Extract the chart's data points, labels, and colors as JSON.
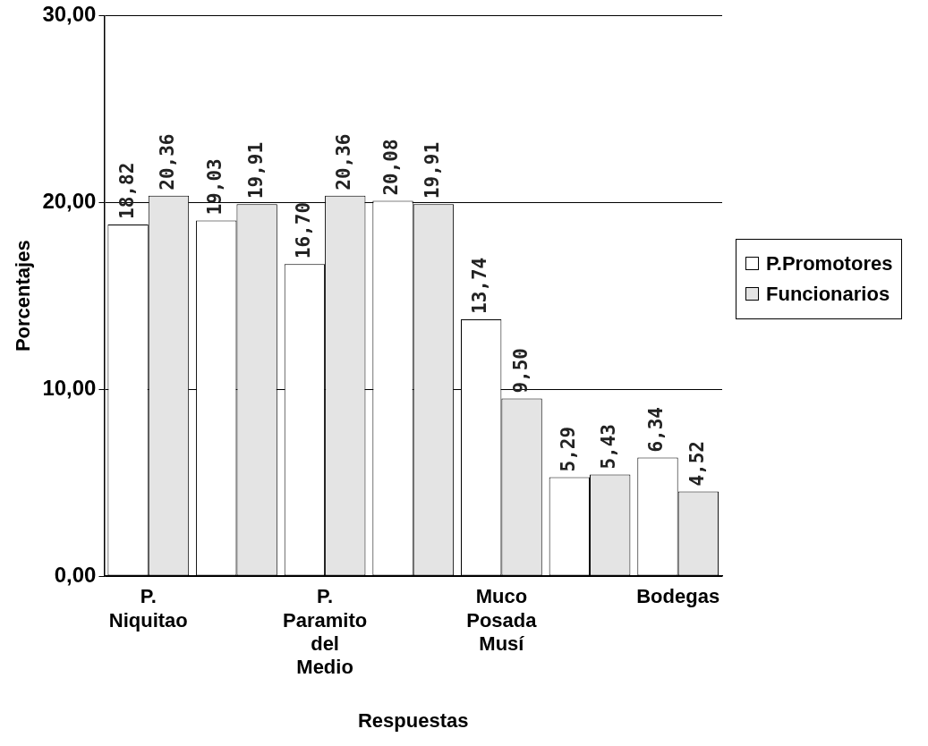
{
  "chart_data": {
    "type": "bar",
    "xlabel": "Respuestas",
    "ylabel": "Porcentajes",
    "categories": [
      "P. Niquitao",
      null,
      "P. Paramito del Medio",
      null,
      "Muco Posada Musí",
      null,
      "Bodegas"
    ],
    "series": [
      {
        "name": "P.Promotores",
        "color": "#ffffff",
        "values": [
          18.82,
          19.03,
          16.7,
          20.08,
          13.74,
          5.29,
          6.34
        ],
        "value_labels": [
          "18,82",
          "19,03",
          "16,70",
          "20,08",
          "13,74",
          "5,29",
          "6,34"
        ]
      },
      {
        "name": "Funcionarios",
        "color": "#e4e4e4",
        "values": [
          20.36,
          19.91,
          20.36,
          19.91,
          9.5,
          5.43,
          4.52
        ],
        "value_labels": [
          "20,36",
          "19,91",
          "20,36",
          "19,91",
          "9,50",
          "5,43",
          "4,52"
        ]
      }
    ],
    "ylim": [
      0,
      30
    ],
    "yticks": [
      {
        "value": 0,
        "label": "0,00"
      },
      {
        "value": 10,
        "label": "10,00"
      },
      {
        "value": 20,
        "label": "20,00"
      },
      {
        "value": 30,
        "label": "30,00"
      }
    ],
    "grid": "y",
    "legend": "right"
  }
}
